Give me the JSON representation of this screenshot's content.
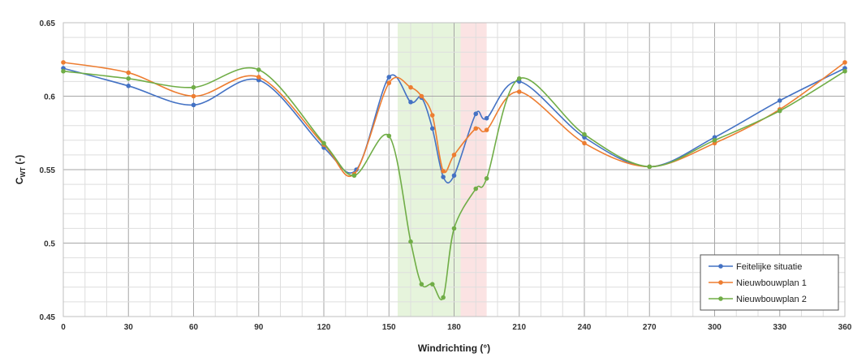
{
  "chart_data": {
    "type": "line",
    "xlabel": "Windrichting (°)",
    "ylabel": {
      "main": "C",
      "sub": "WT",
      "suffix": " (-)"
    },
    "xlim": [
      0,
      360
    ],
    "ylim": [
      0.45,
      0.65
    ],
    "x_ticks": [
      0,
      30,
      60,
      90,
      120,
      150,
      180,
      210,
      240,
      270,
      300,
      330,
      360
    ],
    "y_ticks": [
      0.45,
      0.5,
      0.55,
      0.6,
      0.65
    ],
    "y_tick_labels": [
      "0.45",
      "0.5",
      "0.55",
      "0.6",
      "0.65"
    ],
    "x_minor_step": 10,
    "y_minor_step": 0.01,
    "grid": true,
    "legend_position": "bottom-right",
    "bands": [
      {
        "from": 154,
        "to": 183,
        "color": "#e6f4dc"
      },
      {
        "from": 183,
        "to": 195,
        "color": "#fbe3e3"
      }
    ],
    "series": [
      {
        "name": "Feitelijke situatie",
        "color": "#4472c4",
        "x": [
          0,
          30,
          60,
          90,
          120,
          135,
          150,
          160,
          165,
          170,
          175,
          180,
          190,
          195,
          210,
          240,
          270,
          300,
          330,
          360
        ],
        "y": [
          0.619,
          0.607,
          0.594,
          0.611,
          0.565,
          0.55,
          0.613,
          0.596,
          0.599,
          0.578,
          0.545,
          0.546,
          0.588,
          0.585,
          0.61,
          0.572,
          0.552,
          0.572,
          0.597,
          0.619
        ]
      },
      {
        "name": "Nieuwbouwplan 1",
        "color": "#ed7d31",
        "x": [
          0,
          30,
          60,
          90,
          120,
          134,
          150,
          160,
          165,
          170,
          175,
          180,
          190,
          195,
          210,
          240,
          270,
          300,
          330,
          360
        ],
        "y": [
          0.623,
          0.616,
          0.6,
          0.613,
          0.567,
          0.547,
          0.609,
          0.606,
          0.6,
          0.587,
          0.549,
          0.56,
          0.578,
          0.577,
          0.603,
          0.568,
          0.552,
          0.568,
          0.591,
          0.623
        ]
      },
      {
        "name": "Nieuwbouwplan 2",
        "color": "#70ad47",
        "x": [
          0,
          30,
          60,
          90,
          120,
          134,
          150,
          160,
          165,
          170,
          175,
          180,
          190,
          195,
          210,
          240,
          270,
          300,
          330,
          360
        ],
        "y": [
          0.617,
          0.612,
          0.606,
          0.618,
          0.568,
          0.546,
          0.573,
          0.501,
          0.472,
          0.472,
          0.463,
          0.51,
          0.537,
          0.544,
          0.612,
          0.574,
          0.552,
          0.57,
          0.59,
          0.617
        ]
      }
    ]
  }
}
